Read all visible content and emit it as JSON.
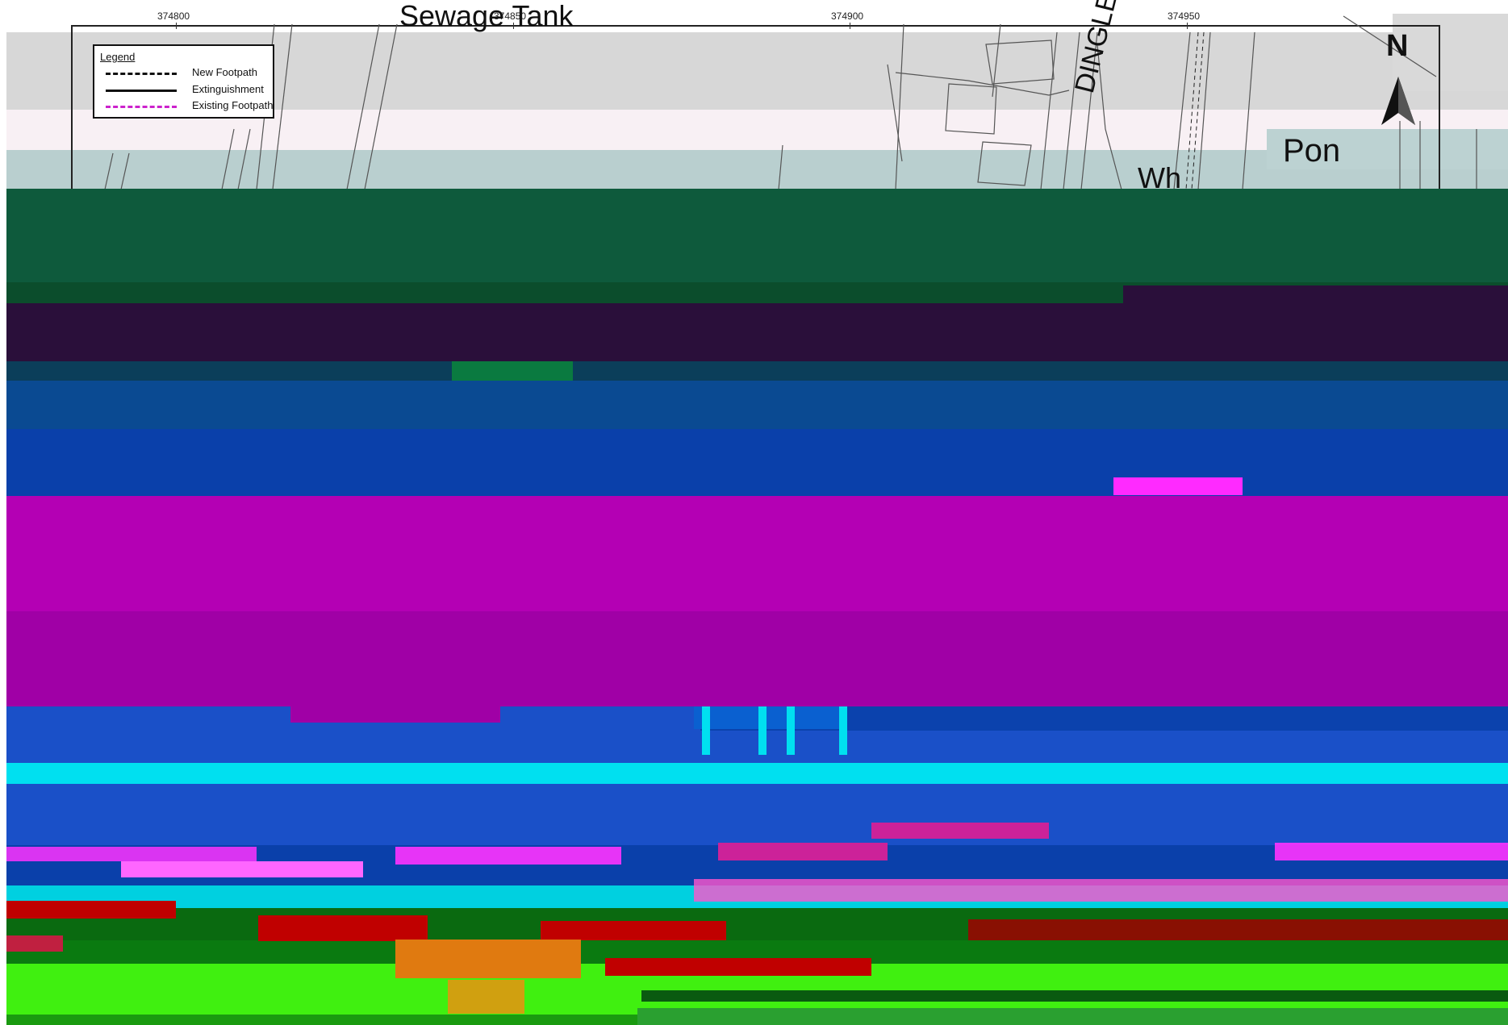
{
  "map": {
    "easting_ticks": [
      "374800",
      "374850",
      "374900",
      "374950"
    ],
    "place_labels": {
      "sewage_tank": "Sewage Tank",
      "dingle_lane": "DINGLE L",
      "pond": "Pon",
      "white": "Wh"
    },
    "north_arrow_label": "N",
    "legend": {
      "title": "Legend",
      "items": [
        {
          "label": "New Footpath",
          "style": "dashed",
          "color": "#111111"
        },
        {
          "label": "Extinguishment",
          "style": "solid",
          "color": "#111111"
        },
        {
          "label": "Existing Footpath",
          "style": "dashed",
          "color": "#cc22cc"
        }
      ]
    },
    "corruption_colors": [
      "#0e5a3c",
      "#2a0f3a",
      "#0a4a92",
      "#0a40aa",
      "#b400b4",
      "#a000a6",
      "#00e0f0",
      "#1a50c8",
      "#ff33ff",
      "#0a6a10",
      "#c00000",
      "#40f010",
      "#80e030"
    ]
  }
}
